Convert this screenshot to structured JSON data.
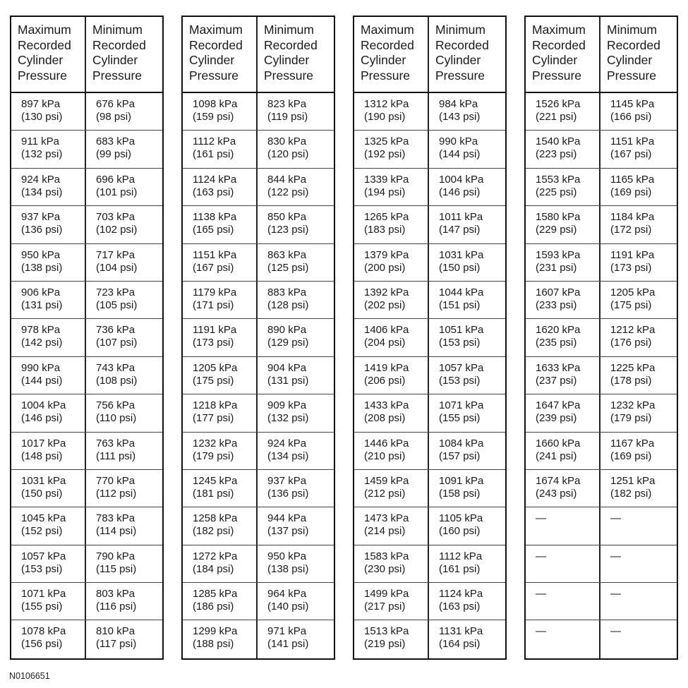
{
  "headers": {
    "max": "Maximum\nRecorded\nCylinder\nPressure",
    "min": "Minimum\nRecorded\nCylinder\nPressure"
  },
  "tables": [
    {
      "rows": [
        [
          "897 kPa",
          "(130 psi)",
          "676 kPa",
          "(98 psi)"
        ],
        [
          "911 kPa",
          "(132 psi)",
          "683 kPa",
          "(99 psi)"
        ],
        [
          "924 kPa",
          "(134 psi)",
          "696 kPa",
          "(101 psi)"
        ],
        [
          "937 kPa",
          "(136 psi)",
          "703 kPa",
          "(102 psi)"
        ],
        [
          "950 kPa",
          "(138 psi)",
          "717 kPa",
          "(104 psi)"
        ],
        [
          "906 kPa",
          "(131 psi)",
          "723 kPa",
          "(105 psi)"
        ],
        [
          "978 kPa",
          "(142 psi)",
          "736 kPa",
          "(107 psi)"
        ],
        [
          "990 kPa",
          "(144 psi)",
          "743 kPa",
          "(108 psi)"
        ],
        [
          "1004 kPa",
          "(146 psi)",
          "756 kPa",
          "(110 psi)"
        ],
        [
          "1017 kPa",
          "(148 psi)",
          "763 kPa",
          "(111 psi)"
        ],
        [
          "1031 kPa",
          "(150 psi)",
          "770 kPa",
          "(112 psi)"
        ],
        [
          "1045 kPa",
          "(152 psi)",
          "783 kPa",
          "(114 psi)"
        ],
        [
          "1057 kPa",
          "(153 psi)",
          "790 kPa",
          "(115 psi)"
        ],
        [
          "1071 kPa",
          "(155 psi)",
          "803 kPa",
          "(116 psi)"
        ],
        [
          "1078 kPa",
          "(156 psi)",
          "810 kPa",
          "(117 psi)"
        ]
      ]
    },
    {
      "rows": [
        [
          "1098 kPa",
          "(159 psi)",
          "823 kPa",
          "(119 psi)"
        ],
        [
          "1112 kPa",
          "(161 psi)",
          "830 kPa",
          "(120 psi)"
        ],
        [
          "1124 kPa",
          "(163 psi)",
          "844 kPa",
          "(122 psi)"
        ],
        [
          "1138 kPa",
          "(165 psi)",
          "850 kPa",
          "(123 psi)"
        ],
        [
          "1151 kPa",
          "(167 psi)",
          "863 kPa",
          "(125 psi)"
        ],
        [
          "1179 kPa",
          "(171 psi)",
          "883 kPa",
          "(128 psi)"
        ],
        [
          "1191 kPa",
          "(173 psi)",
          "890 kPa",
          "(129 psi)"
        ],
        [
          "1205 kPa",
          "(175 psi)",
          "904 kPa",
          "(131 psi)"
        ],
        [
          "1218 kPa",
          "(177 psi)",
          "909 kPa",
          "(132 psi)"
        ],
        [
          "1232 kPa",
          "(179 psi)",
          "924 kPa",
          "(134 psi)"
        ],
        [
          "1245 kPa",
          "(181 psi)",
          "937 kPa",
          "(136 psi)"
        ],
        [
          "1258 kPa",
          "(182 psi)",
          "944 kPa",
          "(137 psi)"
        ],
        [
          "1272 kPa",
          "(184 psi)",
          "950 kPa",
          "(138 psi)"
        ],
        [
          "1285 kPa",
          "(186 psi)",
          "964 kPa",
          "(140 psi)"
        ],
        [
          "1299 kPa",
          "(188 psi)",
          "971 kPa",
          "(141 psi)"
        ]
      ]
    },
    {
      "rows": [
        [
          "1312 kPa",
          "(190 psi)",
          "984 kPa",
          "(143 psi)"
        ],
        [
          "1325 kPa",
          "(192 psi)",
          "990 kPa",
          "(144 psi)"
        ],
        [
          "1339 kPa",
          "(194 psi)",
          "1004 kPa",
          "(146 psi)"
        ],
        [
          "1265 kPa",
          "(183 psi)",
          "1011 kPa",
          "(147 psi)"
        ],
        [
          "1379 kPa",
          "(200 psi)",
          "1031 kPa",
          "(150 psi)"
        ],
        [
          "1392 kPa",
          "(202 psi)",
          "1044 kPa",
          "(151 psi)"
        ],
        [
          "1406 kPa",
          "(204 psi)",
          "1051 kPa",
          "(153 psi)"
        ],
        [
          "1419 kPa",
          "(206 psi)",
          "1057 kPa",
          "(153 psi)"
        ],
        [
          "1433 kPa",
          "(208 psi)",
          "1071 kPa",
          "(155 psi)"
        ],
        [
          "1446 kPa",
          "(210 psi)",
          "1084 kPa",
          "(157 psi)"
        ],
        [
          "1459 kPa",
          "(212 psi)",
          "1091 kPa",
          "(158 psi)"
        ],
        [
          "1473 kPa",
          "(214 psi)",
          "1105 kPa",
          "(160 psi)"
        ],
        [
          "1583 kPa",
          "(230 psi)",
          "1112 kPa",
          "(161 psi)"
        ],
        [
          "1499 kPa",
          "(217 psi)",
          "1124 kPa",
          "(163 psi)"
        ],
        [
          "1513 kPa",
          "(219 psi)",
          "1131 kPa",
          "(164 psi)"
        ]
      ]
    },
    {
      "rows": [
        [
          "1526 kPa",
          "(221 psi)",
          "1145 kPa",
          "(166 psi)"
        ],
        [
          "1540 kPa",
          "(223 psi)",
          "1151 kPa",
          "(167 psi)"
        ],
        [
          "1553 kPa",
          "(225 psi)",
          "1165 kPa",
          "(169 psi)"
        ],
        [
          "1580 kPa",
          "(229 psi)",
          "1184 kPa",
          "(172 psi)"
        ],
        [
          "1593 kPa",
          "(231 psi)",
          "1191 kPa",
          "(173 psi)"
        ],
        [
          "1607 kPa",
          "(233 psi)",
          "1205 kPa",
          "(175 psi)"
        ],
        [
          "1620 kPa",
          "(235 psi)",
          "1212 kPa",
          "(176 psi)"
        ],
        [
          "1633 kPa",
          "(237 psi)",
          "1225 kPa",
          "(178 psi)"
        ],
        [
          "1647 kPa",
          "(239 psi)",
          "1232 kPa",
          "(179 psi)"
        ],
        [
          "1660 kPa",
          "(241 psi)",
          "1167 kPa",
          "(169 psi)"
        ],
        [
          "1674 kPa",
          "(243 psi)",
          "1251 kPa",
          "(182 psi)"
        ],
        [
          "—",
          "",
          "—",
          ""
        ],
        [
          "—",
          "",
          "—",
          ""
        ],
        [
          "—",
          "",
          "—",
          ""
        ],
        [
          "—",
          "",
          "—",
          ""
        ]
      ]
    }
  ],
  "footer": "N0106651"
}
